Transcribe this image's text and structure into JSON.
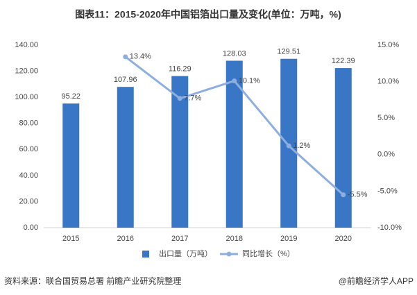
{
  "chart_data": {
    "type": "bar",
    "title": "图表11：2015-2020年中国铝箔出口量及变化(单位：万吨，%)",
    "categories": [
      "2015",
      "2016",
      "2017",
      "2018",
      "2019",
      "2020"
    ],
    "series": [
      {
        "name": "出口量（万吨）",
        "type": "bar",
        "color": "#3a76c6",
        "values": [
          95.22,
          107.96,
          116.29,
          128.03,
          129.51,
          122.39
        ]
      },
      {
        "name": "同比增长（%）",
        "type": "line",
        "axis": "y2",
        "color": "#8eaee0",
        "values": [
          null,
          13.4,
          7.7,
          10.1,
          1.2,
          -5.5
        ],
        "value_labels": [
          null,
          "13.4%",
          "7.7%",
          "10.1%",
          "1.2%",
          "-5.5%"
        ]
      }
    ],
    "ylim": [
      0,
      140
    ],
    "yticks": [
      {
        "value": 0,
        "label": "0.00"
      },
      {
        "value": 20,
        "label": "20.00"
      },
      {
        "value": 40,
        "label": "40.00"
      },
      {
        "value": 60,
        "label": "60.00"
      },
      {
        "value": 80,
        "label": "80.00"
      },
      {
        "value": 100,
        "label": "100.00"
      },
      {
        "value": 120,
        "label": "120.00"
      },
      {
        "value": 140,
        "label": "140.00"
      }
    ],
    "y2lim": [
      -10,
      15
    ],
    "y2ticks": [
      {
        "value": -10,
        "label": "-10.0%"
      },
      {
        "value": -5,
        "label": "-5.0%"
      },
      {
        "value": 0,
        "label": "0.0%"
      },
      {
        "value": 5,
        "label": "5.0%"
      },
      {
        "value": 10,
        "label": "10.0%"
      },
      {
        "value": 15,
        "label": "15.0%"
      }
    ],
    "grid": false,
    "legend": "bottom",
    "source": "资料来源：联合国贸易总署 前瞻产业研究院整理",
    "credit": "@前瞻经济学人APP"
  }
}
